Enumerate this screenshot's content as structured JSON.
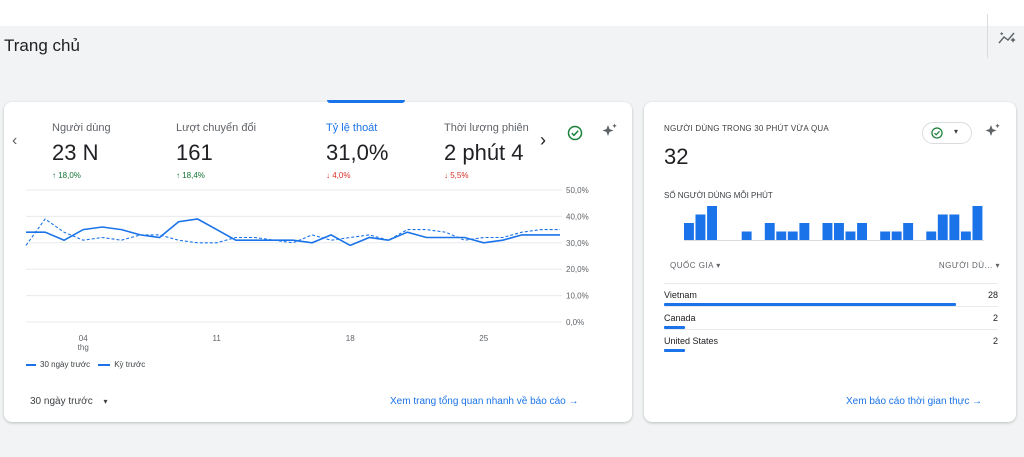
{
  "page": {
    "title": "Trang chủ"
  },
  "left_card": {
    "metrics": [
      {
        "label": "Người dùng",
        "value": "23 N",
        "delta": "↑ 18,0%",
        "trend": "up"
      },
      {
        "label": "Lượt chuyển đổi",
        "value": "161",
        "delta": "↑ 18,4%",
        "trend": "up"
      },
      {
        "label": "Tỷ lệ thoát",
        "value": "31,0%",
        "delta": "↓ 4,0%",
        "trend": "down",
        "active": true
      },
      {
        "label": "Thời lượng phiên",
        "value": "2 phút 4",
        "delta": "↓ 5,5%",
        "trend": "down"
      }
    ],
    "nav_prev": "‹",
    "nav_next": "›",
    "legend": {
      "current": "30 ngày trước",
      "previous": "Kỳ trước"
    },
    "date_range": "30 ngày trước",
    "link": "Xem trang tổng quan nhanh về báo cáo →"
  },
  "chart_data": {
    "type": "line",
    "x": [
      "01",
      "02",
      "03",
      "04",
      "05",
      "06",
      "07",
      "08",
      "09",
      "10",
      "11",
      "12",
      "13",
      "14",
      "15",
      "16",
      "17",
      "18",
      "19",
      "20",
      "21",
      "22",
      "23",
      "24",
      "25",
      "26",
      "27",
      "28",
      "29"
    ],
    "x_tick_labels": [
      "04",
      "11",
      "18",
      "25"
    ],
    "x_tick_sublabel": "thg",
    "y_tick_labels": [
      "50,0%",
      "40,0%",
      "30,0%",
      "20,0%",
      "10,0%",
      "0,0%"
    ],
    "ylim": [
      0,
      50
    ],
    "series": [
      {
        "name": "30 ngày trước",
        "style": "solid",
        "values": [
          34,
          34,
          31,
          35,
          36,
          35,
          33,
          32,
          38,
          39,
          35,
          31,
          31,
          31,
          31,
          30,
          33,
          29,
          32,
          31,
          34,
          32,
          32,
          32,
          30,
          31,
          33,
          33,
          33
        ]
      },
      {
        "name": "Kỳ trước",
        "style": "dashed",
        "values": [
          29,
          39,
          34,
          31,
          32,
          31,
          33,
          33,
          31,
          30,
          30,
          32,
          32,
          31,
          30,
          33,
          31,
          32,
          33,
          31,
          35,
          35,
          34,
          31,
          32,
          32,
          34,
          35,
          35
        ]
      }
    ],
    "legend_position": "bottom-left",
    "colors": {
      "line": "#1a73e8",
      "grid": "#e8eaed"
    }
  },
  "right_card": {
    "title": "NGƯỜI DÙNG TRONG 30 PHÚT VỪA QUA",
    "value": "32",
    "subtitle": "SỐ NGƯỜI DÙNG MỖI PHÚT",
    "per_minute_users": [
      2,
      3,
      4,
      0,
      0,
      1,
      0,
      2,
      1,
      1,
      2,
      0,
      2,
      2,
      1,
      2,
      0,
      1,
      1,
      2,
      0,
      1,
      3,
      3,
      1,
      4
    ],
    "col_country": "QUỐC GIA ▾",
    "col_users": "NGƯỜI DÙ... ▾",
    "rows": [
      {
        "country": "Vietnam",
        "users": "28",
        "share": 0.875
      },
      {
        "country": "Canada",
        "users": "2",
        "share": 0.0625
      },
      {
        "country": "United States",
        "users": "2",
        "share": 0.0625
      }
    ],
    "link": "Xem báo cáo thời gian thực →"
  },
  "colors": {
    "accent": "#1a73e8",
    "up": "#137333",
    "down": "#d93025",
    "ok": "#188038"
  },
  "icons": [
    "chevron-left-icon",
    "chevron-right-icon",
    "check-circle-icon",
    "sparkle-icon",
    "insights-icon",
    "dropdown-arrow-icon"
  ]
}
